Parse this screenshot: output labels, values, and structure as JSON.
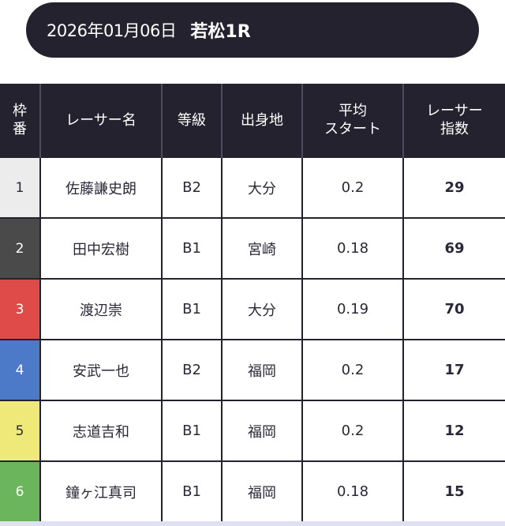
{
  "race": {
    "date": "2026年01月06日",
    "name": "若松1R"
  },
  "table": {
    "headers": {
      "frame": [
        "枠",
        "番"
      ],
      "name": "レーサー名",
      "grade": "等級",
      "hometown": "出身地",
      "avg_start": [
        "平均",
        "スタート"
      ],
      "racer_index": [
        "レーサー",
        "指数"
      ]
    },
    "rows": [
      {
        "frame": "1",
        "frame_color": "#ececec",
        "frame_text_color": "#2a2838",
        "name": "佐藤謙史朗",
        "grade": "B2",
        "hometown": "大分",
        "avg_start": "0.2",
        "racer_index": "29"
      },
      {
        "frame": "2",
        "frame_color": "#4a4a4a",
        "frame_text_color": "#ffffff",
        "name": "田中宏樹",
        "grade": "B1",
        "hometown": "宮崎",
        "avg_start": "0.18",
        "racer_index": "69"
      },
      {
        "frame": "3",
        "frame_color": "#df4b48",
        "frame_text_color": "#ffffff",
        "name": "渡辺崇",
        "grade": "B1",
        "hometown": "大分",
        "avg_start": "0.19",
        "racer_index": "70"
      },
      {
        "frame": "4",
        "frame_color": "#4c79c8",
        "frame_text_color": "#ffffff",
        "name": "安武一也",
        "grade": "B2",
        "hometown": "福岡",
        "avg_start": "0.2",
        "racer_index": "17"
      },
      {
        "frame": "5",
        "frame_color": "#efe97a",
        "frame_text_color": "#2a2838",
        "name": "志道吉和",
        "grade": "B1",
        "hometown": "福岡",
        "avg_start": "0.2",
        "racer_index": "12"
      },
      {
        "frame": "6",
        "frame_color": "#6bb65d",
        "frame_text_color": "#ffffff",
        "name": "鐘ヶ江真司",
        "grade": "B1",
        "hometown": "福岡",
        "avg_start": "0.18",
        "racer_index": "15"
      }
    ]
  }
}
